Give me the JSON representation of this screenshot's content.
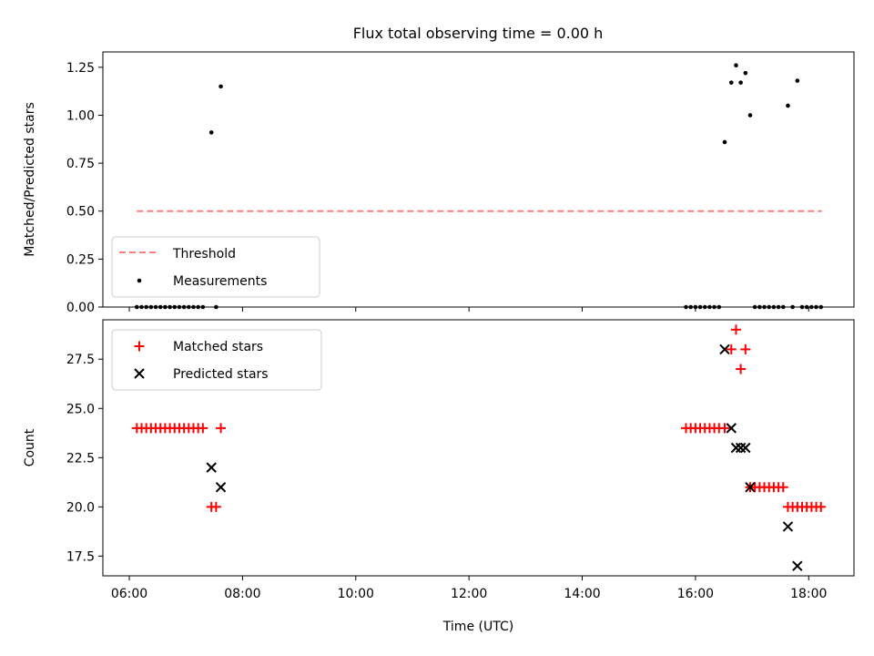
{
  "figure_title": "Flux total observing time = 0.00 h",
  "colors": {
    "threshold": "#ff7f7f",
    "measurement": "#000000",
    "matched": "#ff0000",
    "predicted": "#000000"
  },
  "chart_data": [
    {
      "type": "scatter",
      "title": "Flux total observing time = 0.00 h",
      "xlabel": "",
      "ylabel": "Matched/Predicted stars",
      "xlim": [
        "05:32",
        "18:48"
      ],
      "ylim": [
        0,
        1.33
      ],
      "xticks": [
        "06:00",
        "08:00",
        "10:00",
        "12:00",
        "14:00",
        "16:00",
        "18:00"
      ],
      "yticks": [
        "0.00",
        "0.25",
        "0.50",
        "0.75",
        "1.00",
        "1.25"
      ],
      "legend_position": "lower-left",
      "threshold": {
        "name": "Threshold",
        "value": 0.5,
        "x_start": "06:08",
        "x_end": "18:14"
      },
      "series": [
        {
          "name": "Measurements",
          "points": [
            [
              "06:08",
              0
            ],
            [
              "06:13",
              0
            ],
            [
              "06:18",
              0
            ],
            [
              "06:23",
              0
            ],
            [
              "06:28",
              0
            ],
            [
              "06:33",
              0
            ],
            [
              "06:38",
              0
            ],
            [
              "06:43",
              0
            ],
            [
              "06:48",
              0
            ],
            [
              "06:53",
              0
            ],
            [
              "06:58",
              0
            ],
            [
              "07:03",
              0
            ],
            [
              "07:08",
              0
            ],
            [
              "07:13",
              0
            ],
            [
              "07:18",
              0
            ],
            [
              "07:27",
              0.91
            ],
            [
              "07:32",
              0
            ],
            [
              "07:37",
              1.15
            ],
            [
              "15:50",
              0
            ],
            [
              "15:55",
              0
            ],
            [
              "16:00",
              0
            ],
            [
              "16:05",
              0
            ],
            [
              "16:10",
              0
            ],
            [
              "16:15",
              0
            ],
            [
              "16:20",
              0
            ],
            [
              "16:25",
              0
            ],
            [
              "16:31",
              0.86
            ],
            [
              "16:38",
              1.17
            ],
            [
              "16:43",
              1.26
            ],
            [
              "16:48",
              1.17
            ],
            [
              "16:53",
              1.22
            ],
            [
              "16:58",
              1.0
            ],
            [
              "17:03",
              0
            ],
            [
              "17:08",
              0
            ],
            [
              "17:13",
              0
            ],
            [
              "17:18",
              0
            ],
            [
              "17:23",
              0
            ],
            [
              "17:28",
              0
            ],
            [
              "17:33",
              0
            ],
            [
              "17:38",
              1.05
            ],
            [
              "17:43",
              0
            ],
            [
              "17:48",
              1.18
            ],
            [
              "17:53",
              0
            ],
            [
              "17:58",
              0
            ],
            [
              "18:03",
              0
            ],
            [
              "18:08",
              0
            ],
            [
              "18:13",
              0
            ]
          ]
        }
      ]
    },
    {
      "type": "scatter",
      "title": "",
      "xlabel": "Time (UTC)",
      "ylabel": "Count",
      "xlim": [
        "05:32",
        "18:48"
      ],
      "ylim": [
        16.5,
        29.5
      ],
      "xticks": [
        "06:00",
        "08:00",
        "10:00",
        "12:00",
        "14:00",
        "16:00",
        "18:00"
      ],
      "yticks": [
        "17.5",
        "20.0",
        "22.5",
        "25.0",
        "27.5"
      ],
      "legend_position": "upper-left",
      "series": [
        {
          "name": "Matched stars",
          "marker": "plus",
          "points": [
            [
              "06:08",
              24
            ],
            [
              "06:13",
              24
            ],
            [
              "06:18",
              24
            ],
            [
              "06:23",
              24
            ],
            [
              "06:28",
              24
            ],
            [
              "06:33",
              24
            ],
            [
              "06:38",
              24
            ],
            [
              "06:43",
              24
            ],
            [
              "06:48",
              24
            ],
            [
              "06:53",
              24
            ],
            [
              "06:58",
              24
            ],
            [
              "07:03",
              24
            ],
            [
              "07:08",
              24
            ],
            [
              "07:13",
              24
            ],
            [
              "07:18",
              24
            ],
            [
              "07:27",
              20
            ],
            [
              "07:32",
              20
            ],
            [
              "07:37",
              24
            ],
            [
              "15:50",
              24
            ],
            [
              "15:55",
              24
            ],
            [
              "16:00",
              24
            ],
            [
              "16:05",
              24
            ],
            [
              "16:10",
              24
            ],
            [
              "16:15",
              24
            ],
            [
              "16:20",
              24
            ],
            [
              "16:25",
              24
            ],
            [
              "16:31",
              24
            ],
            [
              "16:38",
              28
            ],
            [
              "16:43",
              29
            ],
            [
              "16:48",
              27
            ],
            [
              "16:53",
              28
            ],
            [
              "16:58",
              21
            ],
            [
              "17:03",
              21
            ],
            [
              "17:08",
              21
            ],
            [
              "17:13",
              21
            ],
            [
              "17:18",
              21
            ],
            [
              "17:23",
              21
            ],
            [
              "17:28",
              21
            ],
            [
              "17:33",
              21
            ],
            [
              "17:38",
              20
            ],
            [
              "17:43",
              20
            ],
            [
              "17:48",
              20
            ],
            [
              "17:53",
              20
            ],
            [
              "17:58",
              20
            ],
            [
              "18:03",
              20
            ],
            [
              "18:08",
              20
            ],
            [
              "18:13",
              20
            ]
          ]
        },
        {
          "name": "Predicted stars",
          "marker": "x",
          "points": [
            [
              "07:27",
              22
            ],
            [
              "07:37",
              21
            ],
            [
              "16:31",
              28
            ],
            [
              "16:38",
              24
            ],
            [
              "16:43",
              23
            ],
            [
              "16:48",
              23
            ],
            [
              "16:53",
              23
            ],
            [
              "16:58",
              21
            ],
            [
              "17:38",
              19
            ],
            [
              "17:48",
              17
            ]
          ]
        }
      ]
    }
  ]
}
